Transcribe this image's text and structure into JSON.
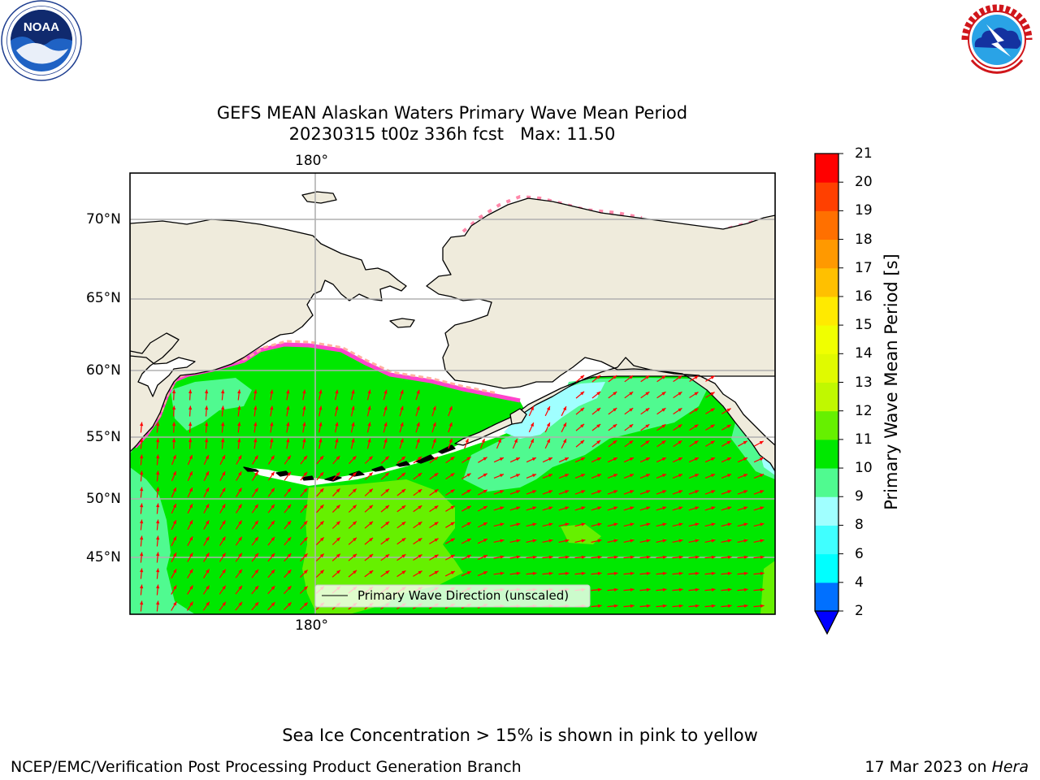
{
  "header": {
    "title_line1": "GEFS MEAN Alaskan Waters Primary Wave Mean Period",
    "title_line2": "20230315 t00z 336h fcst   Max: 11.50"
  },
  "logos": {
    "left": {
      "name": "noaa-logo",
      "text": "NOAA",
      "ring_text": "NATIONAL OCEANIC AND ATMOSPHERIC ADMINISTRATION · U.S. DEPARTMENT OF COMMERCE"
    },
    "right": {
      "name": "nws-logo",
      "ring_text": "NATIONAL WEATHER SERVICE"
    }
  },
  "map": {
    "lon_label_top": "180°",
    "lon_label_bottom": "180°",
    "lat_labels": [
      "70°N",
      "65°N",
      "60°N",
      "55°N",
      "50°N",
      "45°N"
    ],
    "legend_label": "Primary Wave Direction (unscaled)",
    "colors": {
      "land": "#efebdc",
      "ocean_ice_free": "#ffffff",
      "coast": "#000000",
      "grid": "#b0b0b0",
      "arrow": "#ff0000"
    },
    "field_summary": {
      "variable": "Primary Wave Mean Period",
      "units": "s",
      "max": 11.5,
      "dominant_class": "10-11",
      "secondary_class": "9-10",
      "high_class_region": "11-12 south of Aleutians",
      "low_class_region": "8-9 near Alaska Peninsula and SE Alaska coast"
    }
  },
  "colorbar": {
    "label": "Primary Wave Mean Period [s]",
    "ticks": [
      "21",
      "20",
      "19",
      "18",
      "17",
      "16",
      "15",
      "14",
      "13",
      "12",
      "11",
      "10",
      "9",
      "8",
      "6",
      "4",
      "2"
    ],
    "levels": [
      2,
      4,
      6,
      8,
      9,
      10,
      11,
      12,
      13,
      14,
      15,
      16,
      17,
      18,
      19,
      20,
      21
    ],
    "colors": [
      "#0070ff",
      "#00ffff",
      "#40ffff",
      "#a0ffff",
      "#50fa90",
      "#00e800",
      "#66f000",
      "#c0f800",
      "#e0fa00",
      "#f0ff00",
      "#ffea00",
      "#ffc000",
      "#ff9900",
      "#ff7000",
      "#ff4000",
      "#ff0000"
    ],
    "under_color": "#0000ff"
  },
  "footer": {
    "note": "Sea Ice Concentration > 15% is shown in pink to yellow",
    "left": "NCEP/EMC/Verification Post Processing Product Generation Branch",
    "right_prefix": "17 Mar 2023 on ",
    "right_machine": "Hera"
  }
}
